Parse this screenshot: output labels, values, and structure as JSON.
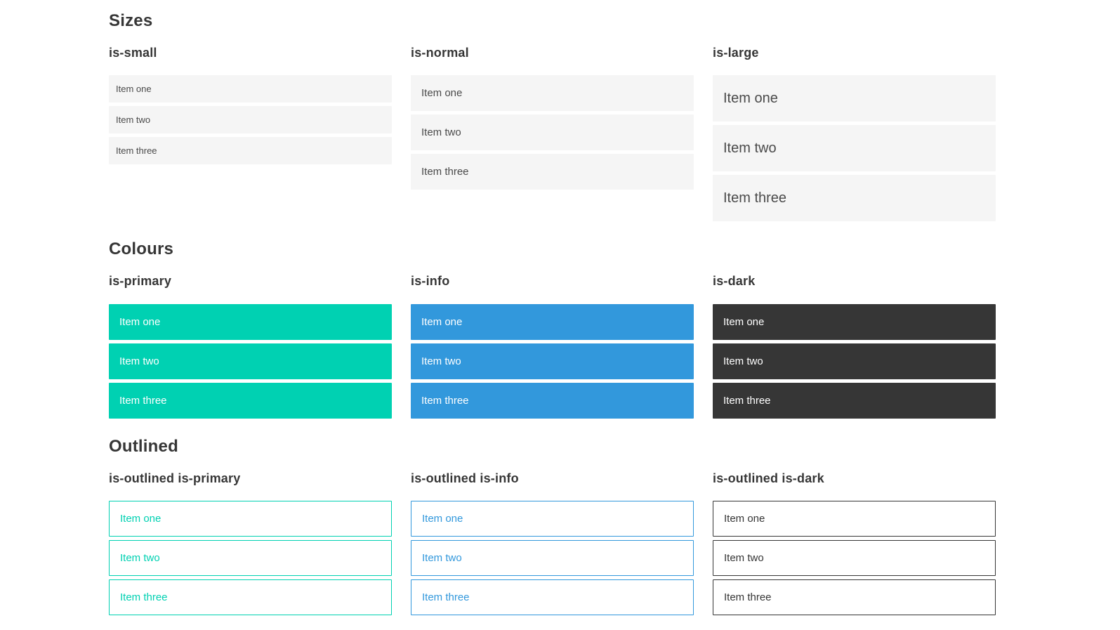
{
  "colors": {
    "primary": "#00d1b2",
    "info": "#3298dc",
    "dark": "#363636",
    "item_bg": "#f5f5f5",
    "item_text": "#4a4a4a",
    "heading_text": "#363636",
    "white": "#ffffff",
    "page_bg": "#ffffff"
  },
  "sections": [
    {
      "title": "Sizes",
      "columns": [
        {
          "heading": "is-small",
          "items": [
            "Item one",
            "Item two",
            "Item three"
          ]
        },
        {
          "heading": "is-normal",
          "items": [
            "Item one",
            "Item two",
            "Item three"
          ]
        },
        {
          "heading": "is-large",
          "items": [
            "Item one",
            "Item two",
            "Item three"
          ]
        }
      ]
    },
    {
      "title": "Colours",
      "columns": [
        {
          "heading": "is-primary",
          "items": [
            "Item one",
            "Item two",
            "Item three"
          ]
        },
        {
          "heading": "is-info",
          "items": [
            "Item one",
            "Item two",
            "Item three"
          ]
        },
        {
          "heading": "is-dark",
          "items": [
            "Item one",
            "Item two",
            "Item three"
          ]
        }
      ]
    },
    {
      "title": "Outlined",
      "columns": [
        {
          "heading": "is-outlined is-primary",
          "items": [
            "Item one",
            "Item two",
            "Item three"
          ]
        },
        {
          "heading": "is-outlined is-info",
          "items": [
            "Item one",
            "Item two",
            "Item three"
          ]
        },
        {
          "heading": "is-outlined is-dark",
          "items": [
            "Item one",
            "Item two",
            "Item three"
          ]
        }
      ]
    }
  ]
}
